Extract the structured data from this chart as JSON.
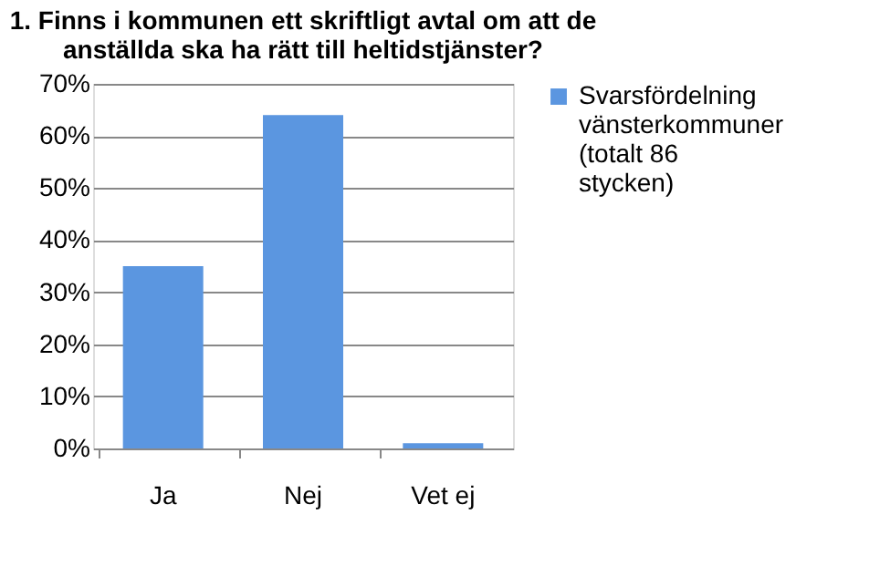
{
  "chart_data": {
    "type": "bar",
    "title": "1. Finns i kommunen ett skriftligt avtal om att de anställda ska ha rätt till heltidstjänster?",
    "categories": [
      "Ja",
      "Nej",
      "Vet ej"
    ],
    "series": [
      {
        "name": "Svarsfördelning vänsterkommuner (totalt 86 stycken)",
        "color": "#5b96e0",
        "values": [
          35,
          64,
          1
        ]
      }
    ],
    "ylim": [
      0,
      70
    ],
    "yticks": [
      {
        "value": 0,
        "label": "0%"
      },
      {
        "value": 10,
        "label": "10%"
      },
      {
        "value": 20,
        "label": "20%"
      },
      {
        "value": 30,
        "label": "30%"
      },
      {
        "value": 40,
        "label": "40%"
      },
      {
        "value": 50,
        "label": "50%"
      },
      {
        "value": 60,
        "label": "60%"
      },
      {
        "value": 70,
        "label": "70%"
      }
    ],
    "grid": "y",
    "legend": "right"
  }
}
